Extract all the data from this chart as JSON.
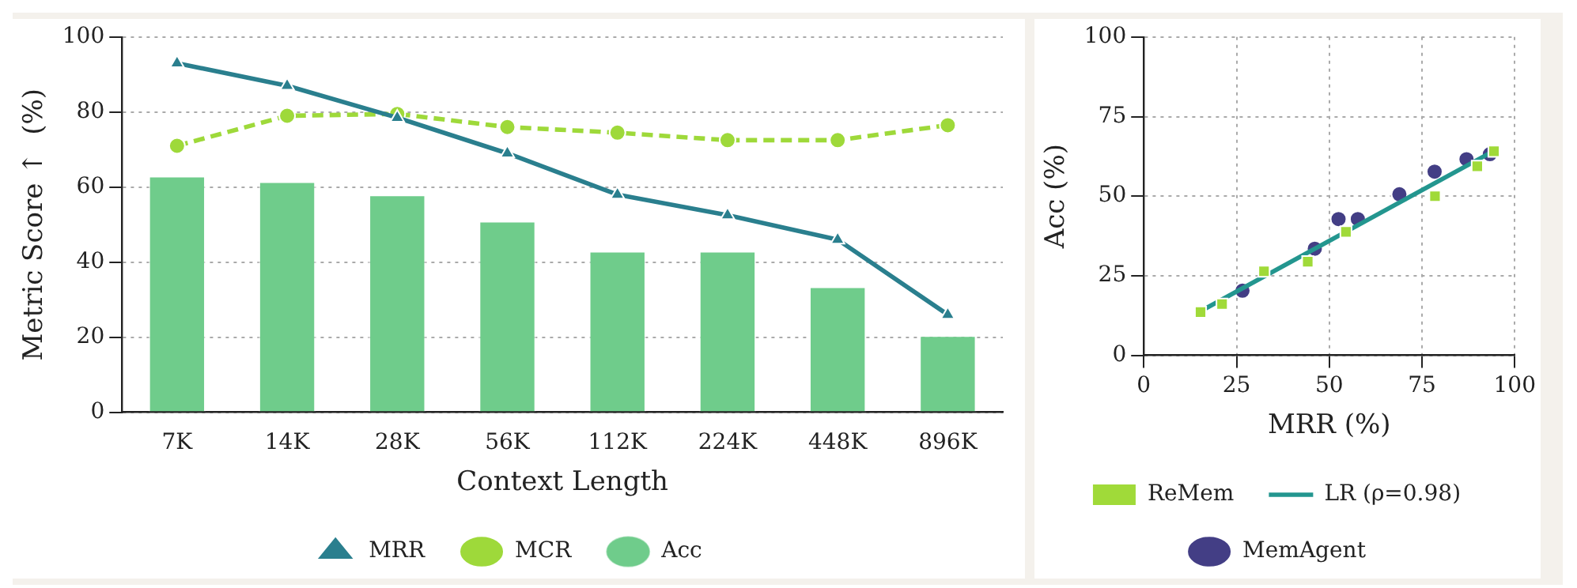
{
  "chart_data": [
    {
      "type": "bar",
      "xlabel": "Context Length",
      "ylabel": "Metric Score ↑  (%)",
      "categories": [
        "7K",
        "14K",
        "28K",
        "56K",
        "112K",
        "224K",
        "448K",
        "896K"
      ],
      "ylim": [
        0,
        100
      ],
      "yticks": [
        0,
        20,
        40,
        60,
        80,
        100
      ],
      "grid": "y",
      "legend": "bottom",
      "series": [
        {
          "name": "MCR",
          "type": "line",
          "color": "#9ed93a",
          "marker": "circle",
          "line_style": "dashed",
          "values": [
            71,
            79,
            79.5,
            76,
            74.5,
            72.5,
            72.5,
            76.5
          ]
        },
        {
          "name": "MRR",
          "type": "line",
          "color": "#2a7f8e",
          "marker": "triangle",
          "line_style": "solid",
          "values": [
            93,
            87,
            78.5,
            69,
            58,
            52.5,
            46,
            26
          ]
        },
        {
          "name": "Acc",
          "type": "bar",
          "color": "#6fcc8b",
          "values": [
            63,
            61.5,
            58,
            51,
            43,
            43,
            33.5,
            20.5
          ]
        }
      ]
    },
    {
      "type": "scatter",
      "xlabel": "MRR (%)",
      "ylabel": "Acc (%)",
      "xlim": [
        0,
        100
      ],
      "xticks": [
        0,
        25,
        50,
        75,
        100
      ],
      "ylim": [
        0,
        100
      ],
      "yticks": [
        0,
        25,
        50,
        75,
        100
      ],
      "grid": true,
      "legend": "bottom",
      "series": [
        {
          "name": "MemAgent",
          "type": "scatter",
          "color": "#433e85",
          "marker": "circle",
          "x": [
            26.6,
            46.1,
            52.5,
            57.7,
            68.9,
            78.4,
            87,
            93.3
          ],
          "values": [
            20.3,
            33.5,
            42.8,
            42.8,
            50.6,
            57.7,
            61.6,
            63.2
          ]
        },
        {
          "name": "LR (ρ=0.98)",
          "type": "line",
          "color": "#23968f",
          "marker": "none",
          "line_style": "solid",
          "x": [
            15.7,
            93.7
          ],
          "values": [
            14.1,
            63.8
          ]
        },
        {
          "name": "ReMem",
          "type": "scatter",
          "color": "#a0da39",
          "marker": "square",
          "x": [
            15.3,
            21.1,
            32.4,
            44.2,
            54.5,
            78.5,
            89.9,
            94.4
          ],
          "values": [
            13.6,
            16.1,
            26.4,
            29.4,
            38.8,
            50,
            59.4,
            64.1
          ]
        }
      ]
    }
  ]
}
